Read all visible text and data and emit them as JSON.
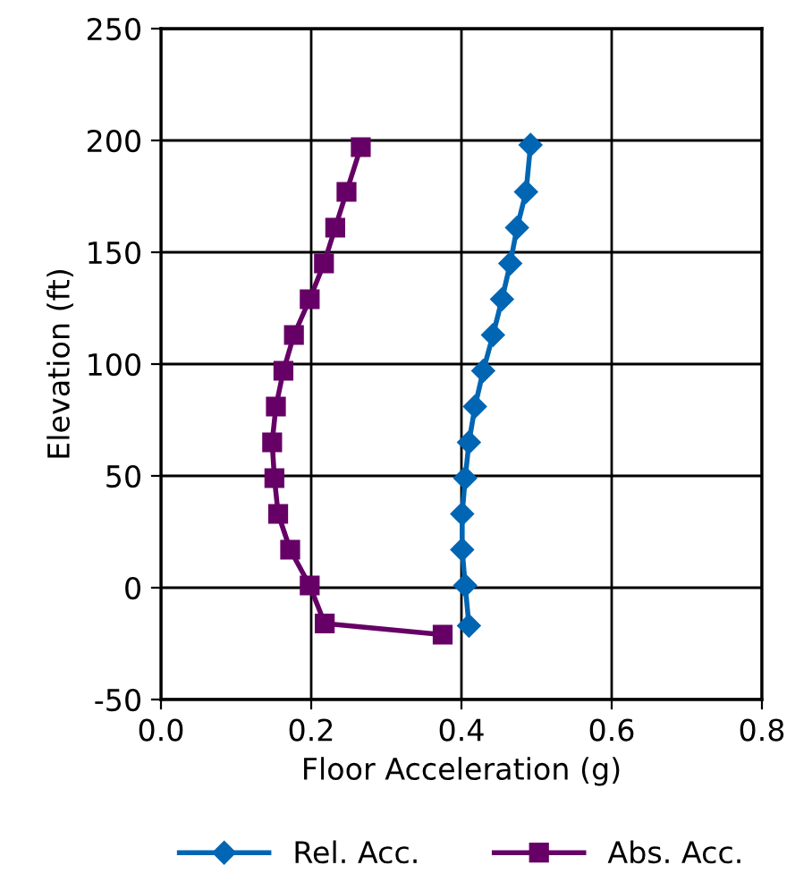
{
  "chart_data": {
    "type": "line",
    "xlabel": "Floor Acceleration (g)",
    "ylabel": "Elevation (ft)",
    "xlim": [
      0,
      0.8
    ],
    "xticks": [
      {
        "value": 0,
        "label": "0.0"
      },
      0.2,
      0.4,
      0.6,
      0.8
    ],
    "ylim": [
      -50,
      250
    ],
    "yticks": [
      -50,
      0,
      50,
      100,
      150,
      200,
      250
    ],
    "grid": true,
    "legend": "bottom",
    "line_style": "solid",
    "series": [
      {
        "name": "Rel. Acc.",
        "color": "#0066b3",
        "marker": "diamond",
        "x": [
          0.492,
          0.486,
          0.474,
          0.465,
          0.454,
          0.442,
          0.429,
          0.418,
          0.41,
          0.405,
          0.401,
          0.401,
          0.405,
          0.41
        ],
        "values": [
          198,
          177,
          161,
          145,
          129,
          113,
          97,
          81,
          65,
          49,
          33,
          17,
          1,
          -17
        ]
      },
      {
        "name": "Abs. Acc.",
        "color": "#660066",
        "marker": "square",
        "x": [
          0.266,
          0.247,
          0.232,
          0.217,
          0.198,
          0.177,
          0.163,
          0.153,
          0.148,
          0.151,
          0.156,
          0.172,
          0.198,
          0.218,
          0.375
        ],
        "values": [
          197,
          177,
          161,
          145,
          129,
          113,
          97,
          81,
          65,
          49,
          33,
          17,
          1,
          -16,
          -21
        ]
      }
    ]
  }
}
